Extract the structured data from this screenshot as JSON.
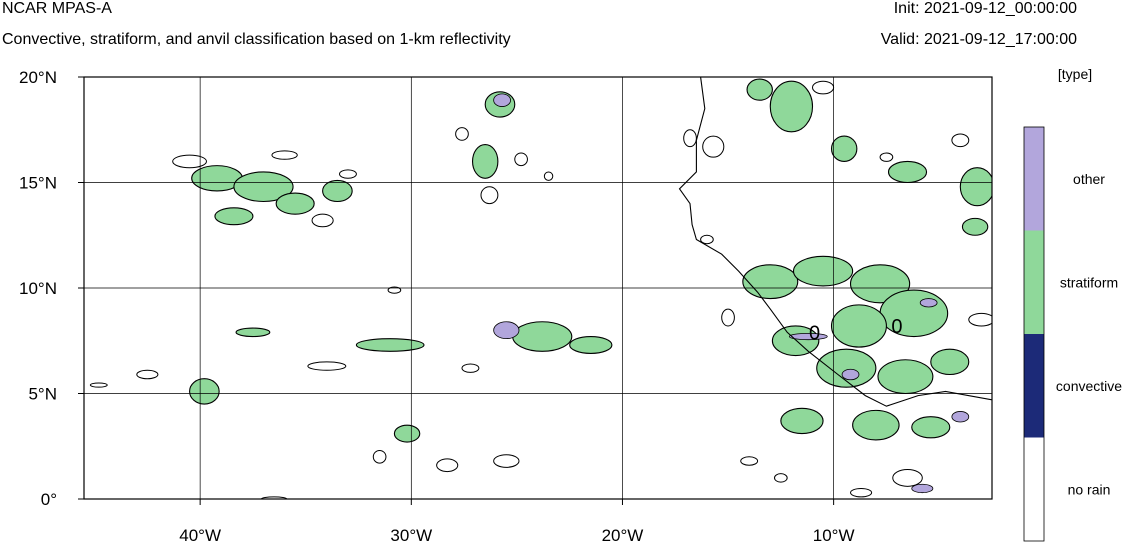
{
  "header": {
    "model_name": "NCAR MPAS-A",
    "subtitle": "Convective, stratiform, and anvil classification based on 1-km reflectivity",
    "init": "Init: 2021-09-12_00:00:00",
    "valid": "Valid: 2021-09-12_17:00:00"
  },
  "chart_data": {
    "type": "heatmap",
    "title": "Convective, stratiform, and anvil classification based on 1-km reflectivity",
    "xlim": [
      -45.5,
      -2.5
    ],
    "ylim": [
      0,
      20
    ],
    "x_ticks": [
      {
        "value": -40,
        "label": "40°W"
      },
      {
        "value": -30,
        "label": "30°W"
      },
      {
        "value": -20,
        "label": "20°W"
      },
      {
        "value": -10,
        "label": "10°W"
      }
    ],
    "y_ticks": [
      {
        "value": 0,
        "label": "0°"
      },
      {
        "value": 5,
        "label": "5°N"
      },
      {
        "value": 10,
        "label": "10°N"
      },
      {
        "value": 15,
        "label": "15°N"
      },
      {
        "value": 20,
        "label": "20°N"
      }
    ],
    "grid": true,
    "colorbar": {
      "unit_label": "[type]",
      "categories": [
        {
          "label": "no rain",
          "color": "#ffffff"
        },
        {
          "label": "convective",
          "color": "#1c2a78"
        },
        {
          "label": "stratiform",
          "color": "#8fd89a"
        },
        {
          "label": "other",
          "color": "#b2a6dc"
        }
      ]
    },
    "contour_labels": [
      {
        "text": "0",
        "lon": -10.9,
        "lat": 7.9
      },
      {
        "text": "0",
        "lon": -7.0,
        "lat": 8.2
      }
    ],
    "coastline": [
      [
        -16.3,
        20.0
      ],
      [
        -16.1,
        18.5
      ],
      [
        -16.5,
        17.0
      ],
      [
        -16.5,
        15.5
      ],
      [
        -17.3,
        14.7
      ],
      [
        -16.8,
        14.0
      ],
      [
        -16.7,
        13.0
      ],
      [
        -16.5,
        12.3
      ],
      [
        -15.3,
        11.6
      ],
      [
        -14.5,
        10.8
      ],
      [
        -13.6,
        9.8
      ],
      [
        -13.0,
        9.0
      ],
      [
        -12.2,
        7.9
      ],
      [
        -11.2,
        7.0
      ],
      [
        -9.8,
        5.9
      ],
      [
        -8.5,
        4.9
      ],
      [
        -7.5,
        4.4
      ],
      [
        -6.0,
        4.9
      ],
      [
        -4.7,
        5.1
      ],
      [
        -2.5,
        4.7
      ]
    ],
    "stratiform_cells": [
      {
        "lon": -39.2,
        "lat": 15.2,
        "rx": 1.2,
        "ry": 0.6
      },
      {
        "lon": -37.0,
        "lat": 14.8,
        "rx": 1.4,
        "ry": 0.7
      },
      {
        "lon": -38.4,
        "lat": 13.4,
        "rx": 0.9,
        "ry": 0.4
      },
      {
        "lon": -35.5,
        "lat": 14.0,
        "rx": 0.9,
        "ry": 0.5
      },
      {
        "lon": -33.5,
        "lat": 14.6,
        "rx": 0.7,
        "ry": 0.5
      },
      {
        "lon": -39.8,
        "lat": 5.1,
        "rx": 0.7,
        "ry": 0.6
      },
      {
        "lon": -37.5,
        "lat": 7.9,
        "rx": 0.8,
        "ry": 0.2
      },
      {
        "lon": -25.8,
        "lat": 18.7,
        "rx": 0.7,
        "ry": 0.6
      },
      {
        "lon": -26.5,
        "lat": 16.0,
        "rx": 0.6,
        "ry": 0.8
      },
      {
        "lon": -23.8,
        "lat": 7.7,
        "rx": 1.4,
        "ry": 0.7
      },
      {
        "lon": -21.5,
        "lat": 7.3,
        "rx": 1.0,
        "ry": 0.4
      },
      {
        "lon": -31.0,
        "lat": 7.3,
        "rx": 1.6,
        "ry": 0.3
      },
      {
        "lon": -30.2,
        "lat": 3.1,
        "rx": 0.6,
        "ry": 0.4
      },
      {
        "lon": -12.0,
        "lat": 18.6,
        "rx": 1.0,
        "ry": 1.2
      },
      {
        "lon": -13.5,
        "lat": 19.4,
        "rx": 0.6,
        "ry": 0.5
      },
      {
        "lon": -9.5,
        "lat": 16.6,
        "rx": 0.6,
        "ry": 0.6
      },
      {
        "lon": -6.5,
        "lat": 15.5,
        "rx": 0.9,
        "ry": 0.5
      },
      {
        "lon": -3.2,
        "lat": 14.8,
        "rx": 0.8,
        "ry": 0.9
      },
      {
        "lon": -13.0,
        "lat": 10.3,
        "rx": 1.3,
        "ry": 0.8
      },
      {
        "lon": -10.5,
        "lat": 10.8,
        "rx": 1.4,
        "ry": 0.7
      },
      {
        "lon": -7.8,
        "lat": 10.2,
        "rx": 1.4,
        "ry": 0.9
      },
      {
        "lon": -6.2,
        "lat": 8.8,
        "rx": 1.6,
        "ry": 1.1
      },
      {
        "lon": -8.8,
        "lat": 8.2,
        "rx": 1.3,
        "ry": 1.0
      },
      {
        "lon": -11.8,
        "lat": 7.5,
        "rx": 1.1,
        "ry": 0.7
      },
      {
        "lon": -9.4,
        "lat": 6.2,
        "rx": 1.4,
        "ry": 0.9
      },
      {
        "lon": -6.6,
        "lat": 5.8,
        "rx": 1.3,
        "ry": 0.8
      },
      {
        "lon": -4.5,
        "lat": 6.5,
        "rx": 0.9,
        "ry": 0.6
      },
      {
        "lon": -11.5,
        "lat": 3.7,
        "rx": 1.0,
        "ry": 0.6
      },
      {
        "lon": -8.0,
        "lat": 3.5,
        "rx": 1.1,
        "ry": 0.7
      },
      {
        "lon": -5.4,
        "lat": 3.4,
        "rx": 0.9,
        "ry": 0.5
      },
      {
        "lon": -3.3,
        "lat": 12.9,
        "rx": 0.6,
        "ry": 0.4
      }
    ],
    "other_cells": [
      {
        "lon": -25.7,
        "lat": 18.9,
        "rx": 0.4,
        "ry": 0.3
      },
      {
        "lon": -25.5,
        "lat": 8.0,
        "rx": 0.6,
        "ry": 0.4
      },
      {
        "lon": -11.2,
        "lat": 7.7,
        "rx": 0.9,
        "ry": 0.15
      },
      {
        "lon": -9.2,
        "lat": 5.9,
        "rx": 0.4,
        "ry": 0.25
      },
      {
        "lon": -5.5,
        "lat": 9.3,
        "rx": 0.4,
        "ry": 0.2
      },
      {
        "lon": -4.0,
        "lat": 3.9,
        "rx": 0.4,
        "ry": 0.25
      },
      {
        "lon": -5.8,
        "lat": 0.5,
        "rx": 0.5,
        "ry": 0.2
      }
    ],
    "rain_outlines": [
      {
        "lon": -40.5,
        "lat": 16.0,
        "rx": 0.8,
        "ry": 0.3
      },
      {
        "lon": -36.0,
        "lat": 16.3,
        "rx": 0.6,
        "ry": 0.2
      },
      {
        "lon": -34.2,
        "lat": 13.2,
        "rx": 0.5,
        "ry": 0.3
      },
      {
        "lon": -33.0,
        "lat": 15.4,
        "rx": 0.4,
        "ry": 0.2
      },
      {
        "lon": -27.6,
        "lat": 17.3,
        "rx": 0.3,
        "ry": 0.3
      },
      {
        "lon": -26.3,
        "lat": 14.4,
        "rx": 0.4,
        "ry": 0.4
      },
      {
        "lon": -24.8,
        "lat": 16.1,
        "rx": 0.3,
        "ry": 0.3
      },
      {
        "lon": -23.5,
        "lat": 15.3,
        "rx": 0.2,
        "ry": 0.2
      },
      {
        "lon": -30.8,
        "lat": 9.9,
        "rx": 0.3,
        "ry": 0.15
      },
      {
        "lon": -27.2,
        "lat": 6.2,
        "rx": 0.4,
        "ry": 0.2
      },
      {
        "lon": -25.5,
        "lat": 1.8,
        "rx": 0.6,
        "ry": 0.3
      },
      {
        "lon": -28.3,
        "lat": 1.6,
        "rx": 0.5,
        "ry": 0.3
      },
      {
        "lon": -44.8,
        "lat": 5.4,
        "rx": 0.4,
        "ry": 0.1
      },
      {
        "lon": -42.5,
        "lat": 5.9,
        "rx": 0.5,
        "ry": 0.2
      },
      {
        "lon": -34.0,
        "lat": 6.3,
        "rx": 0.9,
        "ry": 0.2
      },
      {
        "lon": -31.5,
        "lat": 2.0,
        "rx": 0.3,
        "ry": 0.3
      },
      {
        "lon": -36.5,
        "lat": 0.0,
        "rx": 0.6,
        "ry": 0.1
      },
      {
        "lon": -15.0,
        "lat": 8.6,
        "rx": 0.3,
        "ry": 0.4
      },
      {
        "lon": -15.7,
        "lat": 16.7,
        "rx": 0.5,
        "ry": 0.5
      },
      {
        "lon": -16.8,
        "lat": 17.1,
        "rx": 0.3,
        "ry": 0.4
      },
      {
        "lon": -6.5,
        "lat": 1.0,
        "rx": 0.7,
        "ry": 0.4
      },
      {
        "lon": -8.7,
        "lat": 0.3,
        "rx": 0.5,
        "ry": 0.2
      },
      {
        "lon": -14.0,
        "lat": 1.8,
        "rx": 0.4,
        "ry": 0.2
      },
      {
        "lon": -3.0,
        "lat": 8.5,
        "rx": 0.6,
        "ry": 0.3
      },
      {
        "lon": -4.0,
        "lat": 17.0,
        "rx": 0.4,
        "ry": 0.3
      },
      {
        "lon": -7.5,
        "lat": 16.2,
        "rx": 0.3,
        "ry": 0.2
      },
      {
        "lon": -10.5,
        "lat": 19.5,
        "rx": 0.5,
        "ry": 0.3
      },
      {
        "lon": -16.0,
        "lat": 12.3,
        "rx": 0.3,
        "ry": 0.2
      },
      {
        "lon": -12.5,
        "lat": 1.0,
        "rx": 0.3,
        "ry": 0.2
      }
    ]
  }
}
